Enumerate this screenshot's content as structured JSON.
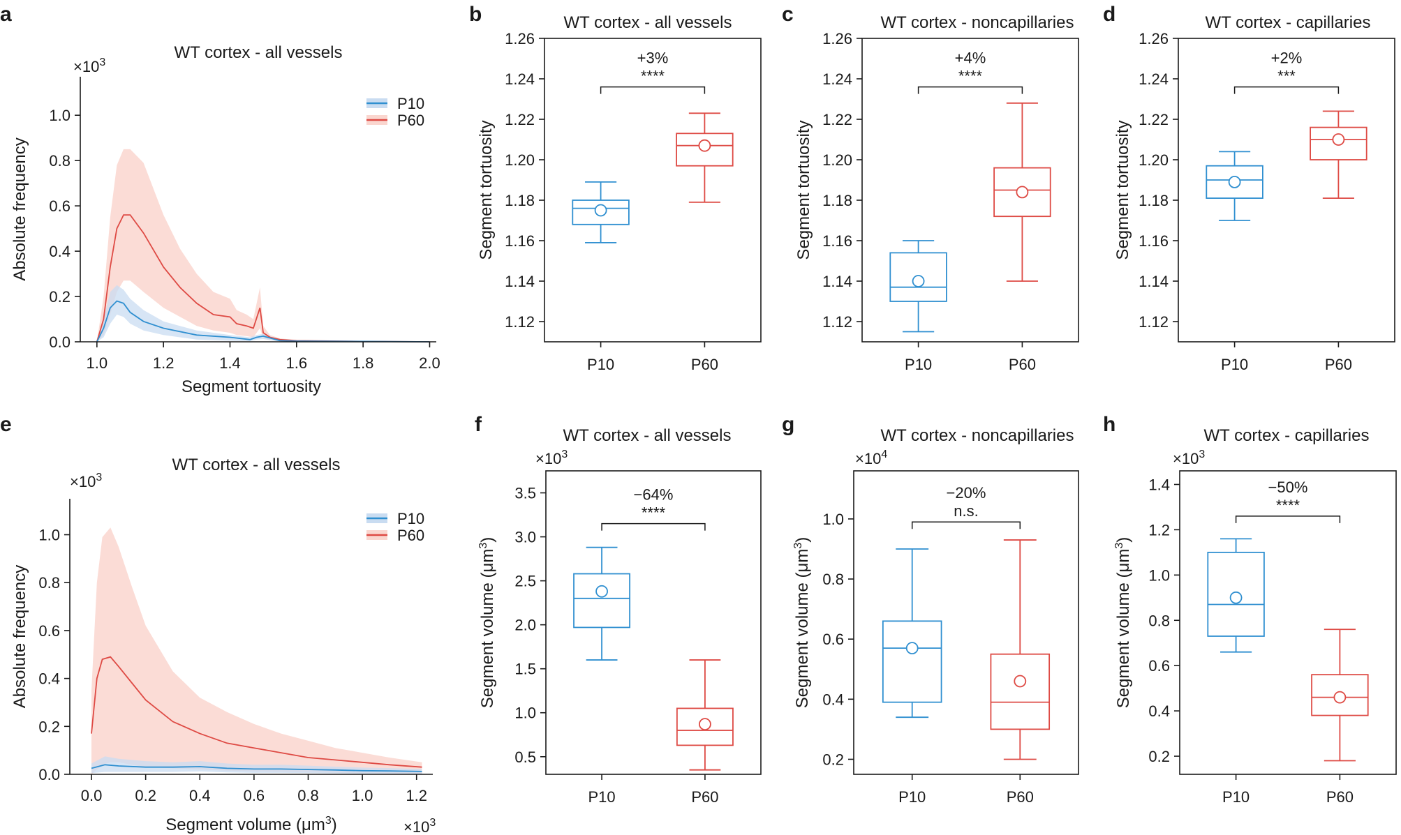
{
  "colors": {
    "p10": "#2f8fd0",
    "p60": "#de4a44",
    "p10_fill": "#c9dcf1",
    "p60_fill": "#fad6cf",
    "axis": "#1a1a1a"
  },
  "chart_data": [
    {
      "id": "a",
      "panel_label": "a",
      "type": "line",
      "title": "WT cortex - all vessels",
      "xlabel": "Segment tortuosity",
      "ylabel": "Absolute frequency",
      "y_multiplier": "×10",
      "y_multiplier_exp": "3",
      "xlim": [
        0.95,
        2.02
      ],
      "ylim": [
        0,
        1.17
      ],
      "xticks": [
        1.0,
        1.2,
        1.4,
        1.6,
        1.8,
        2.0
      ],
      "xtick_labels": [
        "1.0",
        "1.2",
        "1.4",
        "1.6",
        "1.8",
        "2.0"
      ],
      "yticks": [
        0,
        0.2,
        0.4,
        0.6,
        0.8,
        1.0
      ],
      "ytick_labels": [
        "0.0",
        "0.2",
        "0.4",
        "0.6",
        "0.8",
        "1.0"
      ],
      "legend": [
        "P10",
        "P60"
      ],
      "legend_position": "top-right",
      "series": [
        {
          "name": "P10",
          "color_key": "p10",
          "x": [
            1.0,
            1.02,
            1.04,
            1.06,
            1.08,
            1.1,
            1.14,
            1.2,
            1.3,
            1.4,
            1.46,
            1.48,
            1.5,
            1.55,
            1.6,
            1.8,
            2.0
          ],
          "y": [
            0.0,
            0.06,
            0.15,
            0.18,
            0.17,
            0.13,
            0.09,
            0.06,
            0.03,
            0.02,
            0.01,
            0.02,
            0.025,
            0.005,
            0.003,
            0.002,
            0.0
          ],
          "upper": [
            0.0,
            0.1,
            0.22,
            0.25,
            0.23,
            0.19,
            0.14,
            0.09,
            0.05,
            0.03,
            0.02,
            0.03,
            0.035,
            0.01,
            0.005,
            0.003,
            0.0
          ],
          "lower": [
            0.0,
            0.02,
            0.08,
            0.12,
            0.11,
            0.08,
            0.05,
            0.03,
            0.01,
            0.005,
            0.003,
            0.01,
            0.012,
            0.001,
            0.0,
            0.0,
            0.0
          ]
        },
        {
          "name": "P60",
          "color_key": "p60",
          "x": [
            1.0,
            1.02,
            1.04,
            1.06,
            1.08,
            1.1,
            1.14,
            1.2,
            1.25,
            1.3,
            1.35,
            1.4,
            1.42,
            1.45,
            1.47,
            1.49,
            1.5,
            1.52,
            1.55,
            1.6,
            1.8,
            2.0
          ],
          "y": [
            0.0,
            0.1,
            0.33,
            0.5,
            0.56,
            0.56,
            0.48,
            0.33,
            0.24,
            0.17,
            0.12,
            0.11,
            0.08,
            0.07,
            0.06,
            0.15,
            0.04,
            0.02,
            0.01,
            0.005,
            0.002,
            0.0
          ],
          "upper": [
            0.0,
            0.2,
            0.55,
            0.78,
            0.85,
            0.85,
            0.79,
            0.56,
            0.41,
            0.3,
            0.22,
            0.19,
            0.14,
            0.12,
            0.1,
            0.24,
            0.07,
            0.03,
            0.015,
            0.008,
            0.003,
            0.0
          ],
          "lower": [
            0.0,
            0.03,
            0.12,
            0.22,
            0.27,
            0.27,
            0.22,
            0.15,
            0.11,
            0.07,
            0.05,
            0.04,
            0.03,
            0.025,
            0.02,
            0.06,
            0.015,
            0.008,
            0.003,
            0.001,
            0.0,
            0.0
          ]
        }
      ]
    },
    {
      "id": "b",
      "panel_label": "b",
      "type": "box",
      "title": "WT cortex - all vessels",
      "ylabel": "Segment tortuosity",
      "ylim": [
        1.11,
        1.26
      ],
      "yticks": [
        1.12,
        1.14,
        1.16,
        1.18,
        1.2,
        1.22,
        1.24,
        1.26
      ],
      "ytick_labels": [
        "1.12",
        "1.14",
        "1.16",
        "1.18",
        "1.20",
        "1.22",
        "1.24",
        "1.26"
      ],
      "categories": [
        "P10",
        "P60"
      ],
      "boxes": [
        {
          "group": "P10",
          "color_key": "p10",
          "whisker_low": 1.159,
          "q1": 1.168,
          "median": 1.176,
          "q3": 1.18,
          "whisker_high": 1.189,
          "mean": 1.175
        },
        {
          "group": "P60",
          "color_key": "p60",
          "whisker_low": 1.179,
          "q1": 1.197,
          "median": 1.207,
          "q3": 1.213,
          "whisker_high": 1.223,
          "mean": 1.207
        }
      ],
      "bracket": {
        "y": 1.236,
        "change": "+3%",
        "significance": "****"
      }
    },
    {
      "id": "c",
      "panel_label": "c",
      "type": "box",
      "title": "WT cortex - noncapillaries",
      "ylabel": "Segment tortuosity",
      "ylim": [
        1.11,
        1.26
      ],
      "yticks": [
        1.12,
        1.14,
        1.16,
        1.18,
        1.2,
        1.22,
        1.24,
        1.26
      ],
      "ytick_labels": [
        "1.12",
        "1.14",
        "1.16",
        "1.18",
        "1.20",
        "1.22",
        "1.24",
        "1.26"
      ],
      "categories": [
        "P10",
        "P60"
      ],
      "boxes": [
        {
          "group": "P10",
          "color_key": "p10",
          "whisker_low": 1.115,
          "q1": 1.13,
          "median": 1.137,
          "q3": 1.154,
          "whisker_high": 1.16,
          "mean": 1.14
        },
        {
          "group": "P60",
          "color_key": "p60",
          "whisker_low": 1.14,
          "q1": 1.172,
          "median": 1.185,
          "q3": 1.196,
          "whisker_high": 1.228,
          "mean": 1.184
        }
      ],
      "bracket": {
        "y": 1.236,
        "change": "+4%",
        "significance": "****"
      }
    },
    {
      "id": "d",
      "panel_label": "d",
      "type": "box",
      "title": "WT cortex - capillaries",
      "ylabel": "Segment tortuosity",
      "ylim": [
        1.11,
        1.26
      ],
      "yticks": [
        1.12,
        1.14,
        1.16,
        1.18,
        1.2,
        1.22,
        1.24,
        1.26
      ],
      "ytick_labels": [
        "1.12",
        "1.14",
        "1.16",
        "1.18",
        "1.20",
        "1.22",
        "1.24",
        "1.26"
      ],
      "categories": [
        "P10",
        "P60"
      ],
      "boxes": [
        {
          "group": "P10",
          "color_key": "p10",
          "whisker_low": 1.17,
          "q1": 1.181,
          "median": 1.19,
          "q3": 1.197,
          "whisker_high": 1.204,
          "mean": 1.189
        },
        {
          "group": "P60",
          "color_key": "p60",
          "whisker_low": 1.181,
          "q1": 1.2,
          "median": 1.21,
          "q3": 1.216,
          "whisker_high": 1.224,
          "mean": 1.21
        }
      ],
      "bracket": {
        "y": 1.236,
        "change": "+2%",
        "significance": "***"
      }
    },
    {
      "id": "e",
      "panel_label": "e",
      "type": "line",
      "title": "WT cortex - all vessels",
      "xlabel": "Segment volume (μm",
      "xlabel_sup": "3",
      "xlabel_end": ")",
      "ylabel": "Absolute frequency",
      "y_multiplier": "×10",
      "y_multiplier_exp": "3",
      "x_multiplier": "×10",
      "x_multiplier_exp": "3",
      "xlim": [
        -0.08,
        1.26
      ],
      "ylim": [
        0,
        1.15
      ],
      "xticks": [
        0,
        0.2,
        0.4,
        0.6,
        0.8,
        1.0,
        1.2
      ],
      "xtick_labels": [
        "0.0",
        "0.2",
        "0.4",
        "0.6",
        "0.8",
        "1.0",
        "1.2"
      ],
      "yticks": [
        0,
        0.2,
        0.4,
        0.6,
        0.8,
        1.0
      ],
      "ytick_labels": [
        "0.0",
        "0.2",
        "0.4",
        "0.6",
        "0.8",
        "1.0"
      ],
      "legend": [
        "P10",
        "P60"
      ],
      "legend_position": "top-right",
      "series": [
        {
          "name": "P10",
          "color_key": "p10",
          "x": [
            0.0,
            0.05,
            0.1,
            0.2,
            0.3,
            0.4,
            0.5,
            0.6,
            0.7,
            0.8,
            0.9,
            1.0,
            1.1,
            1.22
          ],
          "y": [
            0.025,
            0.04,
            0.035,
            0.03,
            0.03,
            0.032,
            0.025,
            0.022,
            0.022,
            0.02,
            0.018,
            0.015,
            0.014,
            0.012
          ],
          "upper": [
            0.045,
            0.075,
            0.065,
            0.055,
            0.05,
            0.055,
            0.045,
            0.04,
            0.04,
            0.036,
            0.032,
            0.028,
            0.026,
            0.022
          ],
          "lower": [
            0.005,
            0.01,
            0.01,
            0.01,
            0.01,
            0.012,
            0.008,
            0.006,
            0.006,
            0.005,
            0.004,
            0.003,
            0.003,
            0.002
          ]
        },
        {
          "name": "P60",
          "color_key": "p60",
          "x": [
            0.0,
            0.02,
            0.04,
            0.07,
            0.1,
            0.15,
            0.2,
            0.3,
            0.4,
            0.5,
            0.6,
            0.7,
            0.8,
            0.9,
            1.0,
            1.1,
            1.22
          ],
          "y": [
            0.17,
            0.4,
            0.48,
            0.49,
            0.45,
            0.38,
            0.31,
            0.22,
            0.17,
            0.13,
            0.11,
            0.09,
            0.07,
            0.06,
            0.05,
            0.04,
            0.03
          ],
          "upper": [
            0.35,
            0.8,
            0.99,
            1.03,
            0.95,
            0.78,
            0.62,
            0.43,
            0.32,
            0.26,
            0.21,
            0.17,
            0.14,
            0.11,
            0.09,
            0.07,
            0.05
          ],
          "lower": [
            0.0,
            0.02,
            0.04,
            0.05,
            0.05,
            0.04,
            0.03,
            0.025,
            0.02,
            0.015,
            0.012,
            0.01,
            0.008,
            0.006,
            0.005,
            0.004,
            0.003
          ]
        }
      ]
    },
    {
      "id": "f",
      "panel_label": "f",
      "type": "box",
      "title": "WT cortex - all vessels",
      "ylabel": "Segment volume (μm",
      "ylabel_sup": "3",
      "ylabel_end": ")",
      "y_multiplier": "×10",
      "y_multiplier_exp": "3",
      "ylim": [
        0.3,
        3.75
      ],
      "yticks": [
        0.5,
        1.0,
        1.5,
        2.0,
        2.5,
        3.0,
        3.5
      ],
      "ytick_labels": [
        "0.5",
        "1.0",
        "1.5",
        "2.0",
        "2.5",
        "3.0",
        "3.5"
      ],
      "categories": [
        "P10",
        "P60"
      ],
      "boxes": [
        {
          "group": "P10",
          "color_key": "p10",
          "whisker_low": 1.6,
          "q1": 1.97,
          "median": 2.3,
          "q3": 2.58,
          "whisker_high": 2.88,
          "mean": 2.38
        },
        {
          "group": "P60",
          "color_key": "p60",
          "whisker_low": 0.35,
          "q1": 0.63,
          "median": 0.8,
          "q3": 1.05,
          "whisker_high": 1.6,
          "mean": 0.87
        }
      ],
      "bracket": {
        "y": 3.15,
        "change": "−64%",
        "significance": "****"
      }
    },
    {
      "id": "g",
      "panel_label": "g",
      "type": "box",
      "title": "WT cortex - noncapillaries",
      "ylabel": "Segment volume (μm",
      "ylabel_sup": "3",
      "ylabel_end": ")",
      "y_multiplier": "×10",
      "y_multiplier_exp": "4",
      "ylim": [
        0.15,
        1.16
      ],
      "yticks": [
        0.2,
        0.4,
        0.6,
        0.8,
        1.0
      ],
      "ytick_labels": [
        "0.2",
        "0.4",
        "0.6",
        "0.8",
        "1.0"
      ],
      "categories": [
        "P10",
        "P60"
      ],
      "boxes": [
        {
          "group": "P10",
          "color_key": "p10",
          "whisker_low": 0.34,
          "q1": 0.39,
          "median": 0.57,
          "q3": 0.66,
          "whisker_high": 0.9,
          "mean": 0.57
        },
        {
          "group": "P60",
          "color_key": "p60",
          "whisker_low": 0.2,
          "q1": 0.3,
          "median": 0.39,
          "q3": 0.55,
          "whisker_high": 0.93,
          "mean": 0.46
        }
      ],
      "bracket": {
        "y": 0.99,
        "change": "−20%",
        "significance": "n.s."
      }
    },
    {
      "id": "h",
      "panel_label": "h",
      "type": "box",
      "title": "WT cortex - capillaries",
      "ylabel": "Segment volume (μm",
      "ylabel_sup": "3",
      "ylabel_end": ")",
      "y_multiplier": "×10",
      "y_multiplier_exp": "3",
      "ylim": [
        0.12,
        1.46
      ],
      "yticks": [
        0.2,
        0.4,
        0.6,
        0.8,
        1.0,
        1.2,
        1.4
      ],
      "ytick_labels": [
        "0.2",
        "0.4",
        "0.6",
        "0.8",
        "1.0",
        "1.2",
        "1.4"
      ],
      "categories": [
        "P10",
        "P60"
      ],
      "boxes": [
        {
          "group": "P10",
          "color_key": "p10",
          "whisker_low": 0.66,
          "q1": 0.73,
          "median": 0.87,
          "q3": 1.1,
          "whisker_high": 1.16,
          "mean": 0.9
        },
        {
          "group": "P60",
          "color_key": "p60",
          "whisker_low": 0.18,
          "q1": 0.38,
          "median": 0.46,
          "q3": 0.56,
          "whisker_high": 0.76,
          "mean": 0.46
        }
      ],
      "bracket": {
        "y": 1.26,
        "change": "−50%",
        "significance": "****"
      }
    }
  ]
}
